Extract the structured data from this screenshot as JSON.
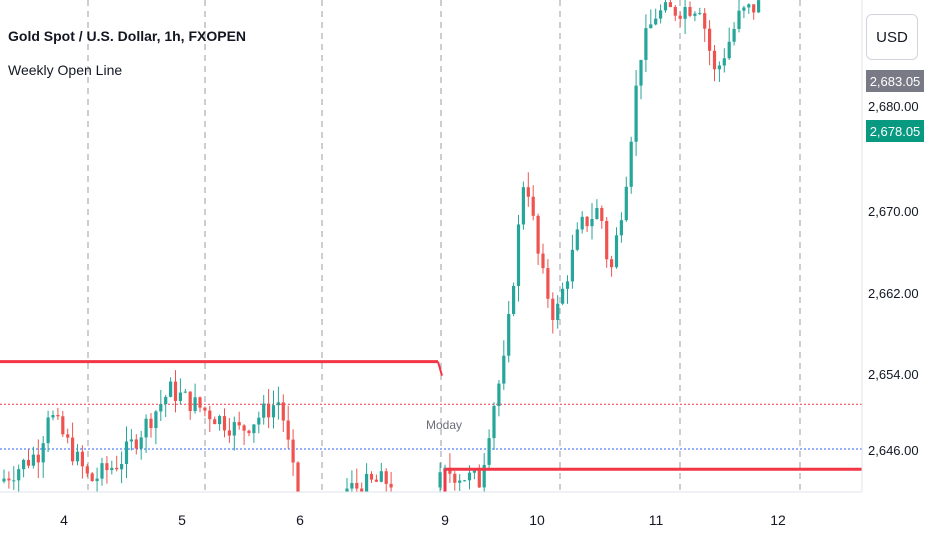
{
  "header": {
    "title": "Gold Spot / U.S. Dollar, 1h, FXOPEN",
    "indicator": "Weekly Open Line"
  },
  "toolbar": {
    "currency_label": "USD"
  },
  "price_axis": {
    "ticks": [
      "2,680.00",
      "2,670.00",
      "2,662.00",
      "2,654.00",
      "2,646.00"
    ],
    "badges": [
      {
        "label": "2,683.05",
        "color": "#787b86"
      },
      {
        "label": "2,678.05",
        "color": "#089981"
      }
    ]
  },
  "annotation": {
    "text": "Moday"
  },
  "colors": {
    "up": "#26a69a",
    "down": "#ef5350",
    "weekly_line": "#f23645",
    "blue_line": "#2962ff"
  },
  "chart_data": {
    "type": "candlestick",
    "symbol": "Gold Spot / U.S. Dollar",
    "interval": "1h",
    "x_ticks": [
      "4",
      "5",
      "6",
      "9",
      "10",
      "11",
      "12"
    ],
    "y_ticks": [
      2646,
      2654,
      2662,
      2670,
      2680
    ],
    "ylim": [
      2641.5,
      2689.0
    ],
    "weekly_open_line": [
      {
        "segment": "previous week",
        "price": 2654.8
      },
      {
        "segment": "current week",
        "price": 2644.2
      }
    ],
    "reference_lines": [
      {
        "style": "dotted",
        "color": "red",
        "price": 2650.6
      },
      {
        "style": "dotted",
        "color": "blue",
        "price": 2646.2
      }
    ],
    "candles": []
  }
}
